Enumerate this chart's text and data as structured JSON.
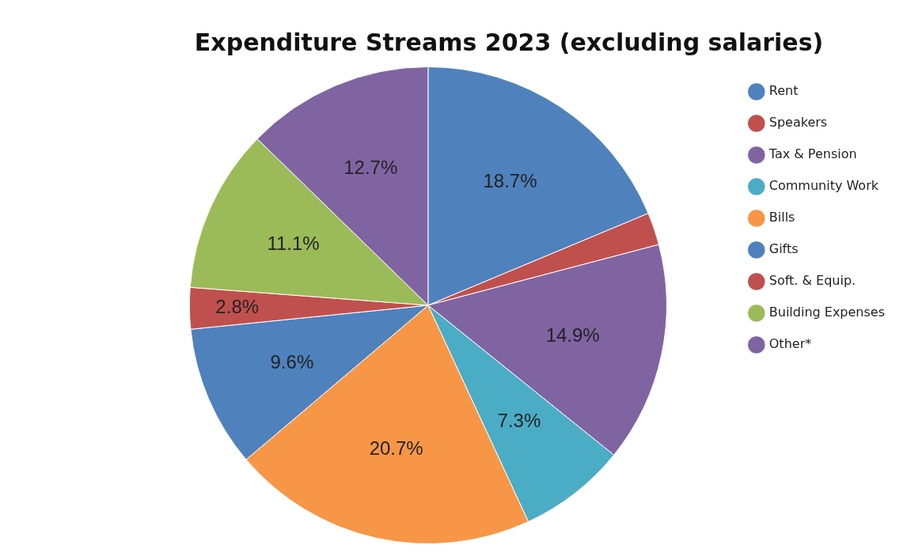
{
  "chart_data": {
    "type": "pie",
    "title": "Expenditure Streams 2023 (excluding salaries)",
    "categories": [
      "Rent",
      "Speakers",
      "Tax & Pension",
      "Community Work",
      "Bills",
      "Gifts",
      "Soft. & Equip.",
      "Building Expenses",
      "Other*"
    ],
    "values": [
      18.7,
      2.2,
      14.9,
      7.3,
      20.7,
      9.6,
      2.8,
      11.1,
      12.7
    ],
    "value_labels": [
      "18.7%",
      null,
      "14.9%",
      "7.3%",
      "20.7%",
      "9.6%",
      "2.8%",
      "11.1%",
      "12.7%"
    ],
    "colors": [
      "#4f81bd",
      "#c0504d",
      "#8064a2",
      "#4bacc6",
      "#f79646",
      "#4f81bd",
      "#c0504d",
      "#9bbb59",
      "#8064a2"
    ],
    "legend": "right"
  }
}
